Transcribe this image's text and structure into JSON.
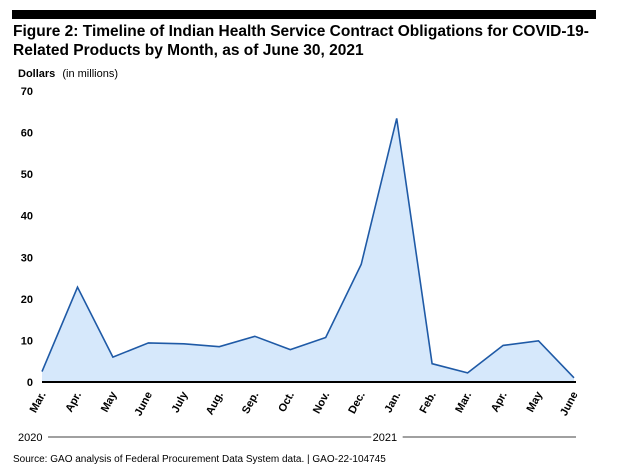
{
  "figure": {
    "title": "Figure 2: Timeline of Indian Health Service Contract Obligations for COVID-19-Related Products by Month, as of June 30, 2021",
    "source": "Source: GAO analysis of Federal Procurement Data System data. | GAO-22-104745"
  },
  "chart_data": {
    "type": "area",
    "ylabel": "Dollars",
    "ylabel_unit": "(in millions)",
    "ylim": [
      0,
      70
    ],
    "yticks": [
      0,
      10,
      20,
      30,
      40,
      50,
      60,
      70
    ],
    "grid": false,
    "categories": [
      "Mar.",
      "Apr.",
      "May",
      "June",
      "July",
      "Aug.",
      "Sep.",
      "Oct.",
      "Nov.",
      "Dec.",
      "Jan.",
      "Feb.",
      "Mar.",
      "Apr.",
      "May",
      "June"
    ],
    "values": [
      2.5,
      22.8,
      6.0,
      9.4,
      9.2,
      8.5,
      11.0,
      7.8,
      10.7,
      28.3,
      63.4,
      4.4,
      2.2,
      8.8,
      9.9,
      1.0
    ],
    "year_groups": [
      {
        "label": "2020",
        "start_index": 0,
        "end_index": 9
      },
      {
        "label": "2021",
        "start_index": 10,
        "end_index": 15
      }
    ],
    "colors": {
      "line": "#1f5aa6",
      "fill": "#d6e8fb",
      "axis": "#000000"
    }
  }
}
